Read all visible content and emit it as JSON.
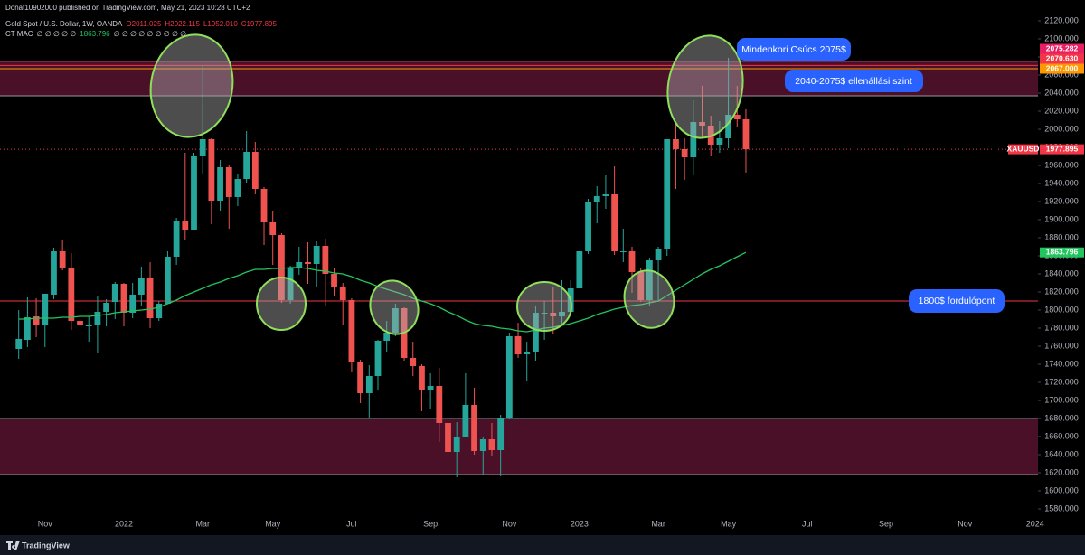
{
  "header": {
    "publisher": "Donat10902000 published on TradingView.com, May 21, 2023 10:28 UTC+2",
    "symbol_line": "Gold Spot / U.S. Dollar, 1W, OANDA",
    "ohlc": [
      "O2011.025",
      "H2022.115",
      "L1952.010",
      "C1977.895"
    ],
    "indicator": {
      "name": "CT MAC",
      "before": "∅ ∅ ∅ ∅ ∅",
      "value": "1863.796",
      "after": "∅ ∅ ∅ ∅ ∅ ∅ ∅ ∅ ∅"
    }
  },
  "footer": {
    "brand": "TradingView"
  },
  "chart_data": {
    "type": "candlestick",
    "categories": [
      null,
      null,
      null,
      "Nov",
      null,
      null,
      null,
      null,
      null,
      null,
      null,
      null,
      "2022",
      null,
      null,
      null,
      null,
      null,
      null,
      null,
      null,
      "Mar",
      null,
      null,
      null,
      null,
      null,
      null,
      null,
      "May",
      null,
      null,
      null,
      null,
      null,
      null,
      null,
      null,
      "Jul",
      null,
      null,
      null,
      null,
      null,
      null,
      null,
      null,
      "Sep",
      null,
      null,
      null,
      null,
      null,
      null,
      null,
      null,
      "Nov",
      null,
      null,
      null,
      null,
      null,
      null,
      null,
      "2023",
      null,
      null,
      null,
      null,
      null,
      null,
      null,
      null,
      "Mar",
      null,
      null,
      null,
      null,
      null,
      null,
      null,
      "May",
      null,
      null,
      null,
      null,
      null,
      null,
      null,
      null,
      "Jul",
      null,
      null,
      null,
      null,
      null,
      null,
      null,
      null,
      "Sep",
      null,
      null,
      null,
      null,
      null,
      null,
      null,
      null,
      "Nov",
      null,
      null,
      null,
      null,
      null,
      null,
      null,
      "2024"
    ],
    "open": [
      1757,
      1767,
      1793,
      1784,
      1817,
      1865,
      1846,
      1788,
      1783,
      1784,
      1798,
      1809,
      1829,
      1797,
      1817,
      1835,
      1791,
      1807,
      1859,
      1899,
      1889,
      1970,
      1989,
      1921,
      1958,
      1925,
      1945,
      1975,
      1934,
      1897,
      1883,
      1811,
      1846,
      1853,
      1851,
      1871,
      1840,
      1826,
      1811,
      1742,
      1708,
      1727,
      1766,
      1775,
      1802,
      1747,
      1738,
      1712,
      1716,
      1675,
      1643,
      1660,
      1695,
      1644,
      1657,
      1645,
      1681,
      1771,
      1751,
      1754,
      1797,
      1797,
      1793,
      1798,
      1824,
      1865,
      1920,
      1926,
      1928,
      1865,
      1865,
      1842,
      1811,
      1855,
      1868,
      1989,
      1978,
      1969,
      2008,
      2004,
      1983,
      1990,
      2016,
      2011.025,
      null,
      null,
      null,
      null,
      null,
      null,
      null,
      null,
      null,
      null,
      null,
      null,
      null,
      null,
      null,
      null,
      null,
      null,
      null,
      null,
      null,
      null,
      null,
      null,
      null,
      null,
      null,
      null,
      null,
      null,
      null,
      null,
      null
    ],
    "high": [
      1800,
      1814,
      1813,
      1818,
      1869,
      1877,
      1863,
      1808,
      1793,
      1815,
      1812,
      1831,
      1830,
      1830,
      1848,
      1853,
      1810,
      1865,
      1902,
      1974,
      1974,
      2070,
      1990,
      1966,
      1960,
      1950,
      1998,
      1986,
      1936,
      1910,
      1885,
      1849,
      1870,
      1875,
      1876,
      1879,
      1847,
      1830,
      1813,
      1745,
      1739,
      1767,
      1788,
      1807,
      1803,
      1765,
      1740,
      1730,
      1736,
      1688,
      1676,
      1730,
      1714,
      1660,
      1675,
      1684,
      1775,
      1786,
      1765,
      1804,
      1810,
      1825,
      1833,
      1833,
      1865,
      1923,
      1937,
      1949,
      1959,
      1890,
      1870,
      1847,
      1858,
      1870,
      1989,
      2009,
      1990,
      2032,
      2048,
      2015,
      2009,
      2079,
      2048,
      2022.115,
      null,
      null,
      null,
      null,
      null,
      null,
      null,
      null,
      null,
      null,
      null,
      null,
      null,
      null,
      null,
      null,
      null,
      null,
      null,
      null,
      null,
      null,
      null,
      null,
      null,
      null,
      null,
      null,
      null,
      null,
      null,
      null,
      null
    ],
    "low": [
      1746,
      1759,
      1770,
      1759,
      1812,
      1844,
      1778,
      1762,
      1765,
      1753,
      1782,
      1790,
      1782,
      1791,
      1805,
      1780,
      1788,
      1807,
      1850,
      1878,
      1889,
      1950,
      1895,
      1910,
      1890,
      1915,
      1940,
      1928,
      1872,
      1850,
      1808,
      1807,
      1839,
      1829,
      1825,
      1805,
      1816,
      1784,
      1732,
      1697,
      1681,
      1711,
      1754,
      1771,
      1744,
      1727,
      1688,
      1690,
      1654,
      1621,
      1615,
      1660,
      1640,
      1617,
      1638,
      1616,
      1680,
      1747,
      1721,
      1744,
      1767,
      1773,
      1785,
      1797,
      1824,
      1862,
      1896,
      1912,
      1861,
      1853,
      1819,
      1809,
      1804,
      1809,
      1860,
      1934,
      1944,
      1949,
      1990,
      1970,
      1974,
      1979,
      2003,
      1952.01,
      null,
      null,
      null,
      null,
      null,
      null,
      null,
      null,
      null,
      null,
      null,
      null,
      null,
      null,
      null,
      null,
      null,
      null,
      null,
      null,
      null,
      null,
      null,
      null,
      null,
      null,
      null,
      null,
      null,
      null,
      null,
      null,
      null
    ],
    "close": [
      1768,
      1792,
      1783,
      1818,
      1865,
      1846,
      1788,
      1783,
      1783,
      1798,
      1808,
      1829,
      1797,
      1817,
      1835,
      1791,
      1807,
      1859,
      1899,
      1889,
      1970,
      1989,
      1921,
      1958,
      1925,
      1945,
      1975,
      1934,
      1897,
      1883,
      1811,
      1846,
      1853,
      1851,
      1871,
      1840,
      1826,
      1811,
      1742,
      1708,
      1727,
      1766,
      1775,
      1802,
      1747,
      1738,
      1712,
      1716,
      1675,
      1643,
      1660,
      1695,
      1644,
      1657,
      1645,
      1681,
      1771,
      1751,
      1754,
      1797,
      1797,
      1793,
      1798,
      1824,
      1865,
      1920,
      1926,
      1928,
      1865,
      1865,
      1842,
      1811,
      1855,
      1868,
      1989,
      1978,
      1969,
      2008,
      2004,
      1983,
      1990,
      2016,
      2011,
      1977.895,
      null,
      null,
      null,
      null,
      null,
      null,
      null,
      null,
      null,
      null,
      null,
      null,
      null,
      null,
      null,
      null,
      null,
      null,
      null,
      null,
      null,
      null,
      null,
      null,
      null,
      null,
      null,
      null,
      null,
      null,
      null,
      null,
      null
    ],
    "up_color": "#26a69a",
    "down_color": "#ef5350",
    "series": [
      {
        "name": "CT MAC",
        "color": "#22c55e",
        "values": [
          1790,
          1790,
          1791,
          1791,
          1791,
          1792,
          1792,
          1793,
          1793,
          1794,
          1795,
          1797,
          1798,
          1799,
          1800,
          1801,
          1803,
          1807,
          1811,
          1816,
          1820,
          1824,
          1828,
          1831,
          1835,
          1838,
          1842,
          1845,
          1845,
          1846,
          1846,
          1847,
          1847,
          1846,
          1844,
          1843,
          1841,
          1840,
          1837,
          1833,
          1830,
          1826,
          1823,
          1820,
          1817,
          1813,
          1810,
          1807,
          1803,
          1798,
          1794,
          1789,
          1785,
          1783,
          1782,
          1780,
          1779,
          1777,
          1776,
          1778,
          1780,
          1781,
          1783,
          1785,
          1788,
          1791,
          1795,
          1798,
          1801,
          1803,
          1805,
          1806,
          1808,
          1810,
          1816,
          1822,
          1828,
          1834,
          1840,
          1845,
          1849,
          1854,
          1859,
          1863.796,
          null,
          null,
          null,
          null,
          null,
          null,
          null,
          null,
          null,
          null,
          null,
          null,
          null,
          null,
          null,
          null,
          null,
          null,
          null,
          null,
          null,
          null,
          null,
          null,
          null,
          null,
          null,
          null,
          null,
          null,
          null,
          null,
          null
        ]
      }
    ],
    "ylim": [
      1573,
      2128
    ],
    "yticks": [
      {
        "value": 2120,
        "label": "2120.000"
      },
      {
        "value": 2100,
        "label": "2100.000"
      },
      {
        "value": 2080,
        "label": "2080.000"
      },
      {
        "value": 2060,
        "label": "2060.000"
      },
      {
        "value": 2040,
        "label": "2040.000"
      },
      {
        "value": 2020,
        "label": "2020.000"
      },
      {
        "value": 2000,
        "label": "2000.000"
      },
      {
        "value": 1980,
        "label": "1980.000"
      },
      {
        "value": 1960,
        "label": "1960.000"
      },
      {
        "value": 1940,
        "label": "1940.000"
      },
      {
        "value": 1920,
        "label": "1920.000"
      },
      {
        "value": 1900,
        "label": "1900.000"
      },
      {
        "value": 1880,
        "label": "1880.000"
      },
      {
        "value": 1860,
        "label": "1860.000"
      },
      {
        "value": 1840,
        "label": "1840.000"
      },
      {
        "value": 1820,
        "label": "1820.000"
      },
      {
        "value": 1800,
        "label": "1800.000"
      },
      {
        "value": 1780,
        "label": "1780.000"
      },
      {
        "value": 1760,
        "label": "1760.000"
      },
      {
        "value": 1740,
        "label": "1740.000"
      },
      {
        "value": 1720,
        "label": "1720.000"
      },
      {
        "value": 1700,
        "label": "1700.000"
      },
      {
        "value": 1680,
        "label": "1680.000"
      },
      {
        "value": 1660,
        "label": "1660.000"
      },
      {
        "value": 1640,
        "label": "1640.000"
      },
      {
        "value": 1620,
        "label": "1620.000"
      },
      {
        "value": 1600,
        "label": "1600.000"
      },
      {
        "value": 1580,
        "label": "1580.000"
      }
    ],
    "grid": false,
    "zones": [
      {
        "from": 2037,
        "to": 2075.282,
        "color": "#4a1028"
      },
      {
        "from": 1618,
        "to": 1680,
        "color": "#4a1028"
      }
    ],
    "levels": [
      {
        "value": 2075.282,
        "color": "#e91e63"
      },
      {
        "value": 2070.63,
        "color": "#f23645"
      },
      {
        "value": 2067,
        "color": "#ff9800"
      },
      {
        "value": 1977.895,
        "color": "#f23645",
        "style": "dotted"
      },
      {
        "value": 1810,
        "color": "#f23645"
      }
    ],
    "symbol": "XAUUSD",
    "price_tags": [
      {
        "value": 2075.282,
        "label": "2075.282",
        "color": "#e91e63"
      },
      {
        "value": 2070.63,
        "label": "2070.630",
        "color": "#f23645"
      },
      {
        "value": 2067,
        "label": "2067.000",
        "color": "#ff9800"
      },
      {
        "value": 1977.895,
        "label": "1977.895",
        "color": "#f23645"
      },
      {
        "value": 1863.796,
        "label": "1863.796",
        "color": "#22c55e"
      }
    ],
    "annotations": [
      "Mindenkori Csúcs 2075$",
      "2040-2075$ ellenállási szint",
      "1800$ fordulópont"
    ]
  }
}
